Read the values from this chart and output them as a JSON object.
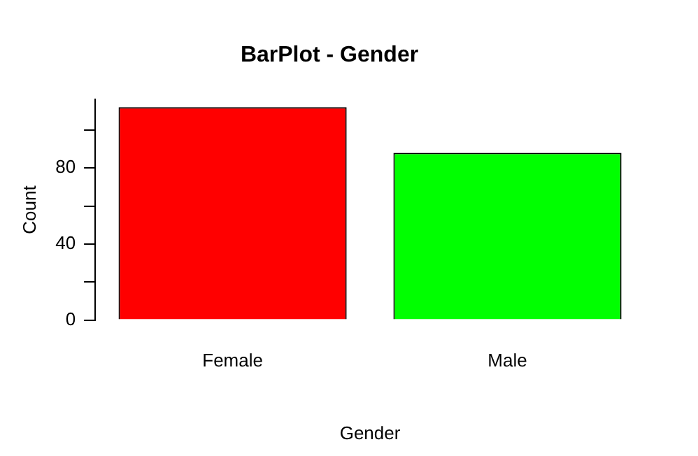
{
  "chart_data": {
    "type": "bar",
    "title": "BarPlot - Gender",
    "xlabel": "Gender",
    "ylabel": "Count",
    "categories": [
      "Female",
      "Male"
    ],
    "values": [
      112,
      88
    ],
    "colors": [
      "#ff0000",
      "#00ff00"
    ],
    "ylim": [
      0,
      116
    ],
    "yticks": [
      0,
      {
        "value": 20,
        "label": null
      },
      40,
      {
        "value": 60,
        "label": null
      },
      80,
      {
        "value": 100,
        "label": null
      }
    ],
    "grid": false,
    "legend": false
  }
}
